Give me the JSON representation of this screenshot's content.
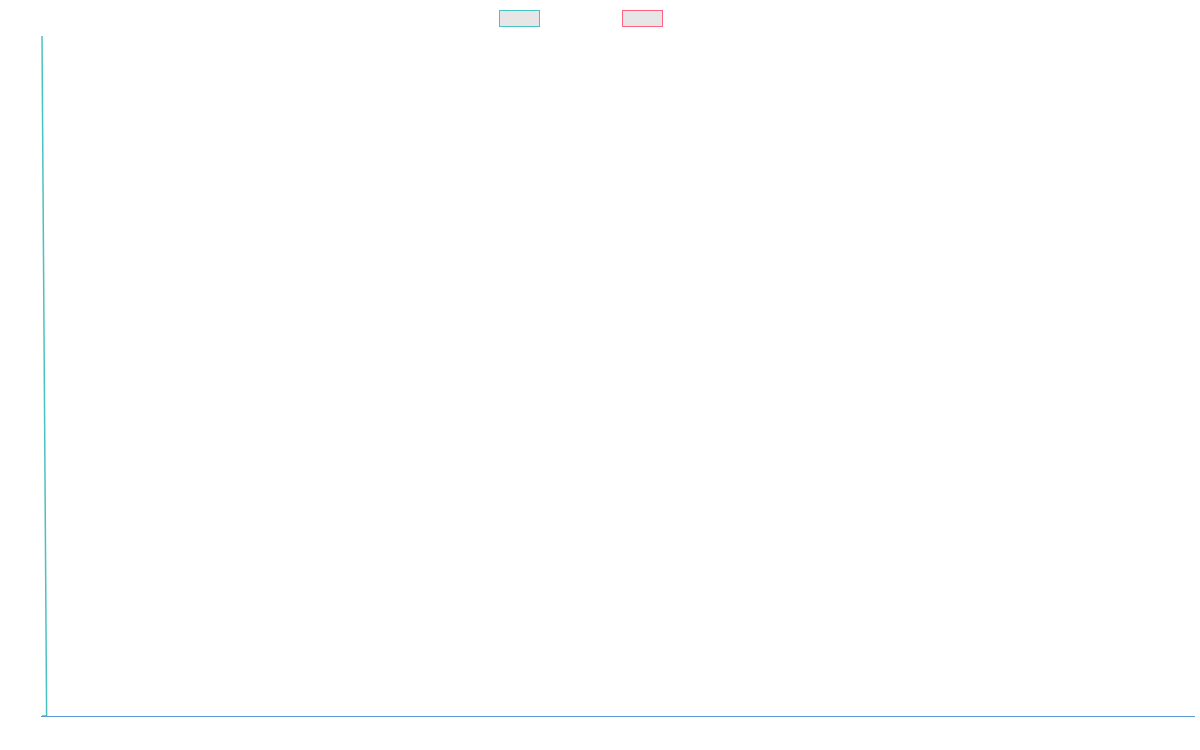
{
  "chart_data": {
    "type": "line",
    "title": "",
    "xlabel": "",
    "ylabel": "",
    "x": [
      0,
      1
    ],
    "xlim": [
      0,
      250
    ],
    "ylim": [
      0,
      1
    ],
    "grid": false,
    "legend": {
      "placement": "top-center",
      "entries": [
        {
          "label": "",
          "color": "#4bc0c0"
        },
        {
          "label": "",
          "color": "#ff6384"
        }
      ]
    },
    "series": [
      {
        "color": "#4bc0c0",
        "values": [
          1,
          0
        ]
      },
      {
        "color": "#ff6384",
        "values": [
          0,
          0
        ]
      }
    ]
  }
}
